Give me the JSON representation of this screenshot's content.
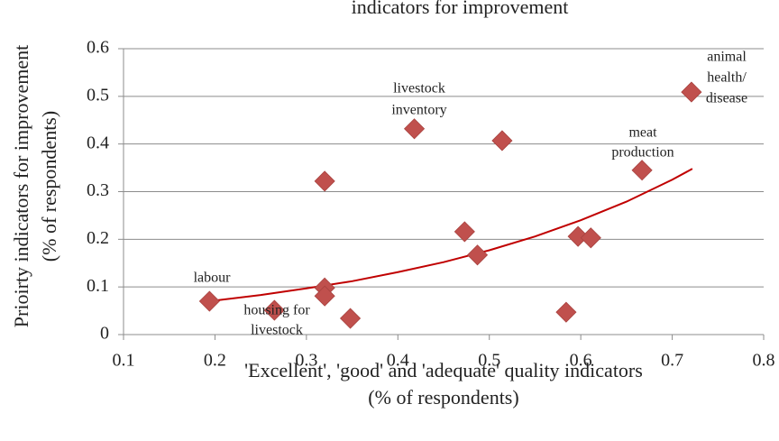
{
  "chart_data": {
    "type": "scatter",
    "title": "indicators for improvement",
    "xlabel": [
      "'Excellent', 'good' and 'adequate' quality indicators",
      "(% of respondents)"
    ],
    "ylabel": [
      "Prioirty indicators for improvement",
      "(% of respondents)"
    ],
    "series": [
      {
        "color": "#c0504d",
        "x": [
          0.194,
          0.265,
          0.32,
          0.32,
          0.32,
          0.348,
          0.418,
          0.473,
          0.487,
          0.514,
          0.584,
          0.597,
          0.611,
          0.667,
          0.721
        ],
        "values": [
          0.07,
          0.051,
          0.322,
          0.098,
          0.081,
          0.034,
          0.432,
          0.216,
          0.167,
          0.407,
          0.047,
          0.206,
          0.203,
          0.345,
          0.509
        ]
      }
    ],
    "trendline": {
      "color": "#c00000",
      "x": [
        0.194,
        0.25,
        0.3,
        0.35,
        0.4,
        0.45,
        0.5,
        0.55,
        0.6,
        0.65,
        0.7,
        0.722
      ],
      "values": [
        0.07,
        0.083,
        0.097,
        0.112,
        0.131,
        0.152,
        0.177,
        0.206,
        0.24,
        0.279,
        0.325,
        0.348
      ]
    },
    "annotations": [
      {
        "text": [
          "labour"
        ]
      },
      {
        "text": [
          "housing for",
          "livestock"
        ]
      },
      {
        "text": [
          "livestock",
          "inventory"
        ]
      },
      {
        "text": [
          "meat",
          "production"
        ]
      },
      {
        "text": [
          "animal",
          "health/",
          "disease"
        ]
      }
    ],
    "xlim": [
      0.1,
      0.8
    ],
    "xticks": [
      0.1,
      0.2,
      0.3,
      0.4,
      0.5,
      0.6,
      0.7,
      0.8
    ],
    "ylim": [
      0,
      0.6
    ],
    "yticks": [
      0,
      0.1,
      0.2,
      0.3,
      0.4,
      0.5,
      0.6
    ],
    "grid": true
  }
}
